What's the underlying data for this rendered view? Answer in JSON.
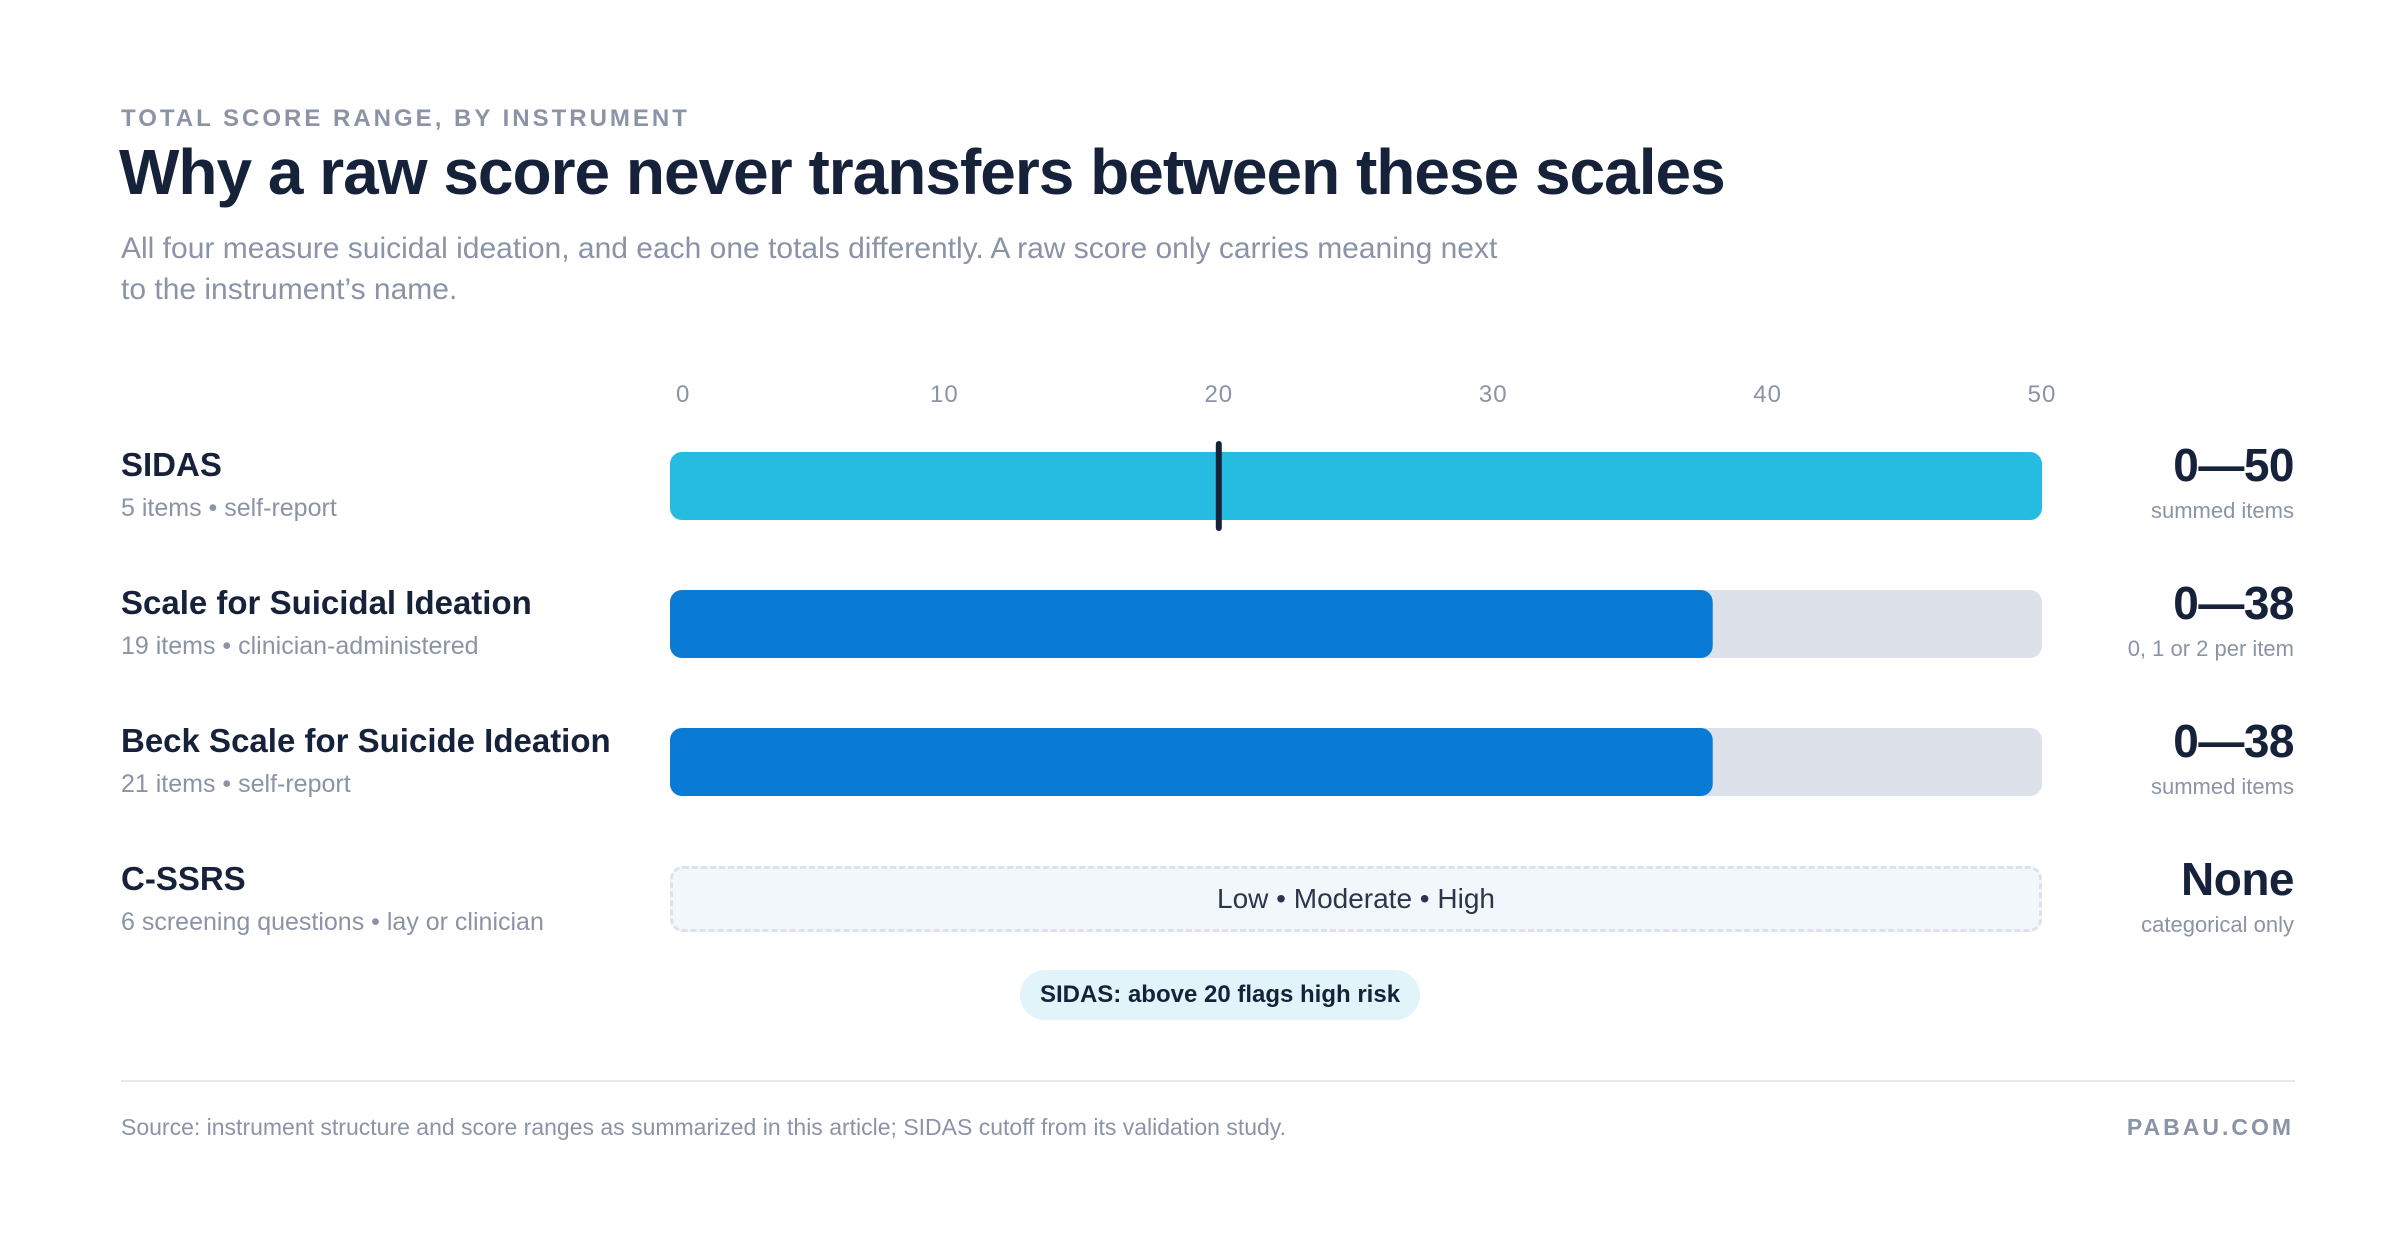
{
  "header": {
    "eyebrow": "TOTAL SCORE RANGE, BY INSTRUMENT",
    "title": "Why a raw score never transfers between these scales",
    "subtitle": "All four measure suicidal ideation, and each one totals differently. A raw score only carries meaning next to the instrument’s name."
  },
  "chart_data": {
    "type": "bar",
    "orientation": "horizontal",
    "xlim": [
      0,
      50
    ],
    "ticks": [
      0,
      10,
      20,
      30,
      40,
      50
    ],
    "grid": false,
    "categories": [
      "SIDAS",
      "Scale for Suicidal Ideation",
      "Beck Scale for Suicide Ideation",
      "C-SSRS"
    ],
    "values": [
      50,
      38,
      38,
      null
    ],
    "colors": [
      "#26bbe0",
      "#0a7bd4",
      "#0a7bd4",
      null
    ],
    "track_color": "#dde2ea",
    "marker": {
      "series": "SIDAS",
      "value": 20,
      "color": "#16213a"
    },
    "cutoff_label": "SIDAS: above 20 flags high risk"
  },
  "rows": [
    {
      "name": "SIDAS",
      "meta": "5 items • self-report",
      "range": "0—50",
      "range_note": "summed items"
    },
    {
      "name": "Scale for Suicidal Ideation",
      "meta": "19 items • clinician-administered",
      "range": "0—38",
      "range_note": "0, 1 or 2 per item"
    },
    {
      "name": "Beck Scale for Suicide Ideation",
      "meta": "21 items • self-report",
      "range": "0—38",
      "range_note": "summed items"
    },
    {
      "name": "C-SSRS",
      "meta": "6 screening questions • lay or clinician",
      "range": "None",
      "range_note": "categorical only",
      "categories_label": "Low • Moderate • High"
    }
  ],
  "footer": {
    "source": "Source: instrument structure and score ranges as summarized in this article; SIDAS cutoff from its validation study.",
    "brand": "PABAU.COM"
  }
}
